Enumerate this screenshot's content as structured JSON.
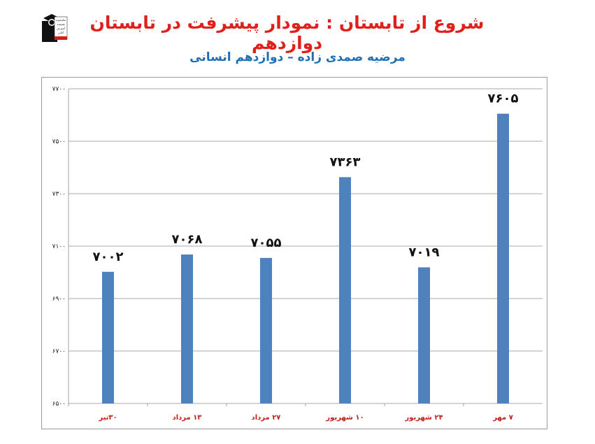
{
  "logo": {
    "icon": "graduate-logo-icon",
    "lines": [
      "مکتبخونه",
      "همیشه",
      "آموزش",
      "آنلاین"
    ]
  },
  "header": {
    "title": "شروع از تابستان : نمودار پیشرفت در تابستان دوازدهم",
    "subtitle": "مرضیه صمدی زاده – دوازدهم انسانی"
  },
  "colors": {
    "bar": "#4f81bd",
    "title": "#e0211b",
    "subtitle": "#1f6fb5",
    "xtick": "#c0201a"
  },
  "chart_data": {
    "type": "bar",
    "categories": [
      "۳۰تیر",
      "۱۳ مرداد",
      "۲۷ مرداد",
      "۱۰ شهریور",
      "۲۴ شهریور",
      "۷ مهر"
    ],
    "values": [
      7002,
      7068,
      7055,
      7363,
      7019,
      7605
    ],
    "data_labels": [
      "۷۰۰۲",
      "۷۰۶۸",
      "۷۰۵۵",
      "۷۳۶۳",
      "۷۰۱۹",
      "۷۶۰۵"
    ],
    "ylim": [
      6500,
      7700
    ],
    "yticks": [
      6500,
      6700,
      6900,
      7100,
      7300,
      7500,
      7700
    ],
    "ytick_labels": [
      "۶۵۰۰",
      "۶۷۰۰",
      "۶۹۰۰",
      "۷۱۰۰",
      "۷۳۰۰",
      "۷۵۰۰",
      "۷۷۰۰"
    ],
    "title": "",
    "xlabel": "",
    "ylabel": "",
    "grid": true
  }
}
